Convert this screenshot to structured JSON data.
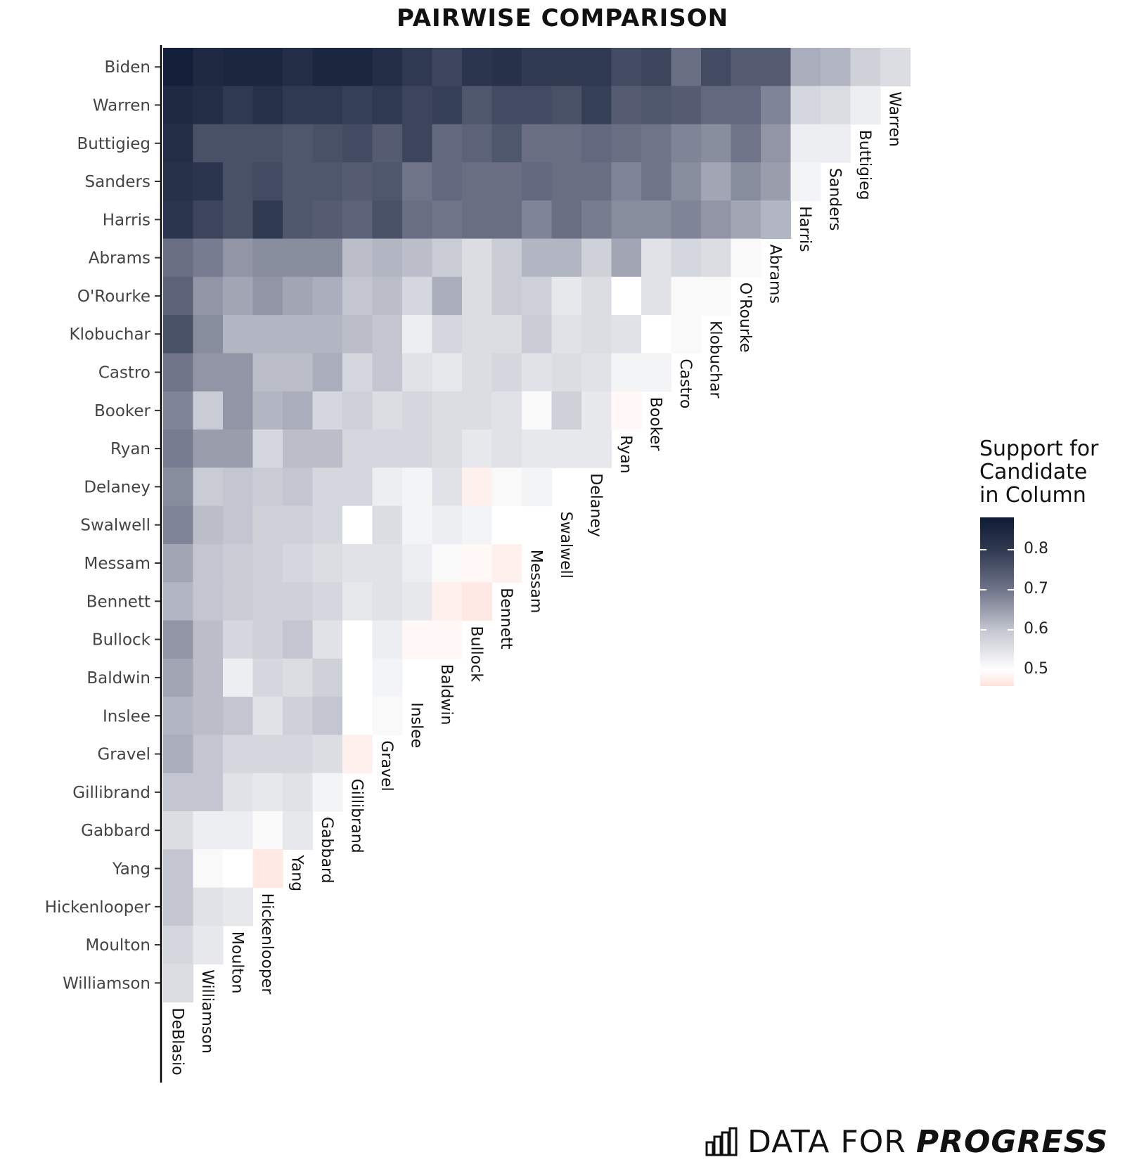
{
  "title": "PAIRWISE COMPARISON",
  "legend": {
    "title_lines": [
      "Support for",
      "Candidate",
      "in Column"
    ],
    "ticks": [
      "0.8",
      "0.7",
      "0.6",
      "0.5"
    ],
    "tick_values": [
      0.8,
      0.7,
      0.6,
      0.5
    ],
    "range": [
      0.46,
      0.88
    ],
    "colors": [
      "#fde2db",
      "#ffffff",
      "#c3c6d0",
      "#6f7489",
      "#2f3950",
      "#0f1b34"
    ]
  },
  "branding": {
    "text_a": "DATA FOR",
    "text_b": "PROGRESS"
  },
  "chart_data": {
    "type": "heatmap",
    "title": "PAIRWISE COMPARISON",
    "rows": [
      "Biden",
      "Warren",
      "Buttigieg",
      "Sanders",
      "Harris",
      "Abrams",
      "O'Rourke",
      "Klobuchar",
      "Castro",
      "Booker",
      "Ryan",
      "Delaney",
      "Swalwell",
      "Messam",
      "Bennett",
      "Bullock",
      "Baldwin",
      "Inslee",
      "Gravel",
      "Gillibrand",
      "Gabbard",
      "Yang",
      "Hickenlooper",
      "Moulton",
      "Williamson"
    ],
    "columns": [
      "DeBlasio",
      "Williamson",
      "Moulton",
      "Hickenlooper",
      "Yang",
      "Gabbard",
      "Gillibrand",
      "Gravel",
      "Inslee",
      "Baldwin",
      "Bullock",
      "Bennett",
      "Messam",
      "Swalwell",
      "Delaney",
      "Ryan",
      "Booker",
      "Castro",
      "Klobuchar",
      "O'Rourke",
      "Abrams",
      "Harris",
      "Sanders",
      "Buttigieg",
      "Warren"
    ],
    "values": [
      [
        0.87,
        0.84,
        0.85,
        0.85,
        0.83,
        0.85,
        0.85,
        0.83,
        0.8,
        0.78,
        0.81,
        0.82,
        0.8,
        0.8,
        0.8,
        0.77,
        0.78,
        0.71,
        0.77,
        0.74,
        0.74,
        0.63,
        0.62,
        0.58,
        0.56
      ],
      [
        0.84,
        0.83,
        0.8,
        0.82,
        0.8,
        0.8,
        0.79,
        0.8,
        0.78,
        0.79,
        0.75,
        0.77,
        0.77,
        0.76,
        0.79,
        0.74,
        0.75,
        0.74,
        0.72,
        0.72,
        0.68,
        0.57,
        0.56,
        0.53
      ],
      [
        0.83,
        0.76,
        0.76,
        0.76,
        0.75,
        0.76,
        0.77,
        0.74,
        0.78,
        0.72,
        0.73,
        0.75,
        0.71,
        0.71,
        0.72,
        0.71,
        0.7,
        0.68,
        0.67,
        0.7,
        0.66,
        0.53,
        0.53
      ],
      [
        0.82,
        0.81,
        0.76,
        0.77,
        0.75,
        0.75,
        0.74,
        0.75,
        0.7,
        0.72,
        0.71,
        0.71,
        0.72,
        0.71,
        0.71,
        0.68,
        0.7,
        0.67,
        0.64,
        0.67,
        0.65,
        0.52
      ],
      [
        0.81,
        0.78,
        0.76,
        0.8,
        0.75,
        0.74,
        0.73,
        0.76,
        0.71,
        0.7,
        0.71,
        0.71,
        0.68,
        0.71,
        0.69,
        0.67,
        0.67,
        0.68,
        0.66,
        0.64,
        0.62
      ],
      [
        0.71,
        0.69,
        0.66,
        0.67,
        0.67,
        0.67,
        0.61,
        0.62,
        0.61,
        0.59,
        0.56,
        0.59,
        0.62,
        0.62,
        0.58,
        0.64,
        0.55,
        0.57,
        0.56,
        0.51
      ],
      [
        0.73,
        0.66,
        0.64,
        0.66,
        0.64,
        0.63,
        0.6,
        0.61,
        0.57,
        0.63,
        0.56,
        0.59,
        0.58,
        0.54,
        0.56,
        0.5,
        0.55,
        0.51,
        0.51
      ],
      [
        0.76,
        0.67,
        0.62,
        0.62,
        0.62,
        0.62,
        0.61,
        0.6,
        0.53,
        0.57,
        0.56,
        0.56,
        0.59,
        0.55,
        0.56,
        0.55,
        0.5,
        0.51
      ],
      [
        0.7,
        0.66,
        0.66,
        0.61,
        0.61,
        0.63,
        0.57,
        0.6,
        0.55,
        0.54,
        0.56,
        0.57,
        0.55,
        0.56,
        0.55,
        0.52,
        0.52
      ],
      [
        0.68,
        0.59,
        0.66,
        0.62,
        0.63,
        0.57,
        0.58,
        0.56,
        0.57,
        0.56,
        0.56,
        0.55,
        0.51,
        0.58,
        0.54,
        0.49
      ],
      [
        0.69,
        0.65,
        0.65,
        0.57,
        0.61,
        0.61,
        0.57,
        0.57,
        0.57,
        0.56,
        0.54,
        0.55,
        0.54,
        0.54,
        0.54
      ],
      [
        0.67,
        0.59,
        0.6,
        0.59,
        0.6,
        0.57,
        0.57,
        0.53,
        0.52,
        0.55,
        0.48,
        0.51,
        0.52
      ],
      [
        0.68,
        0.61,
        0.6,
        0.58,
        0.58,
        0.57,
        0.5,
        0.56,
        0.52,
        0.53,
        0.52,
        0.5
      ],
      [
        0.64,
        0.6,
        0.59,
        0.58,
        0.57,
        0.56,
        0.55,
        0.55,
        0.53,
        0.51,
        0.49,
        0.48
      ],
      [
        0.62,
        0.6,
        0.59,
        0.58,
        0.58,
        0.57,
        0.54,
        0.55,
        0.54,
        0.48,
        0.47
      ],
      [
        0.66,
        0.61,
        0.57,
        0.58,
        0.6,
        0.55,
        0.5,
        0.53,
        0.49,
        0.49
      ],
      [
        0.64,
        0.61,
        0.53,
        0.57,
        0.56,
        0.58,
        0.5,
        0.52
      ],
      [
        0.62,
        0.61,
        0.6,
        0.55,
        0.58,
        0.6,
        0.5,
        0.51
      ],
      [
        0.63,
        0.6,
        0.57,
        0.57,
        0.57,
        0.56,
        0.48
      ],
      [
        0.6,
        0.6,
        0.55,
        0.54,
        0.55,
        0.52
      ],
      [
        0.56,
        0.53,
        0.53,
        0.51,
        0.54
      ],
      [
        0.6,
        0.51,
        0.5,
        0.47
      ],
      [
        0.6,
        0.55,
        0.54
      ],
      [
        0.57,
        0.54
      ],
      [
        0.56
      ]
    ],
    "color_scale": {
      "min": 0.46,
      "max": 0.88,
      "legend_title": "Support for Candidate in Column"
    }
  }
}
